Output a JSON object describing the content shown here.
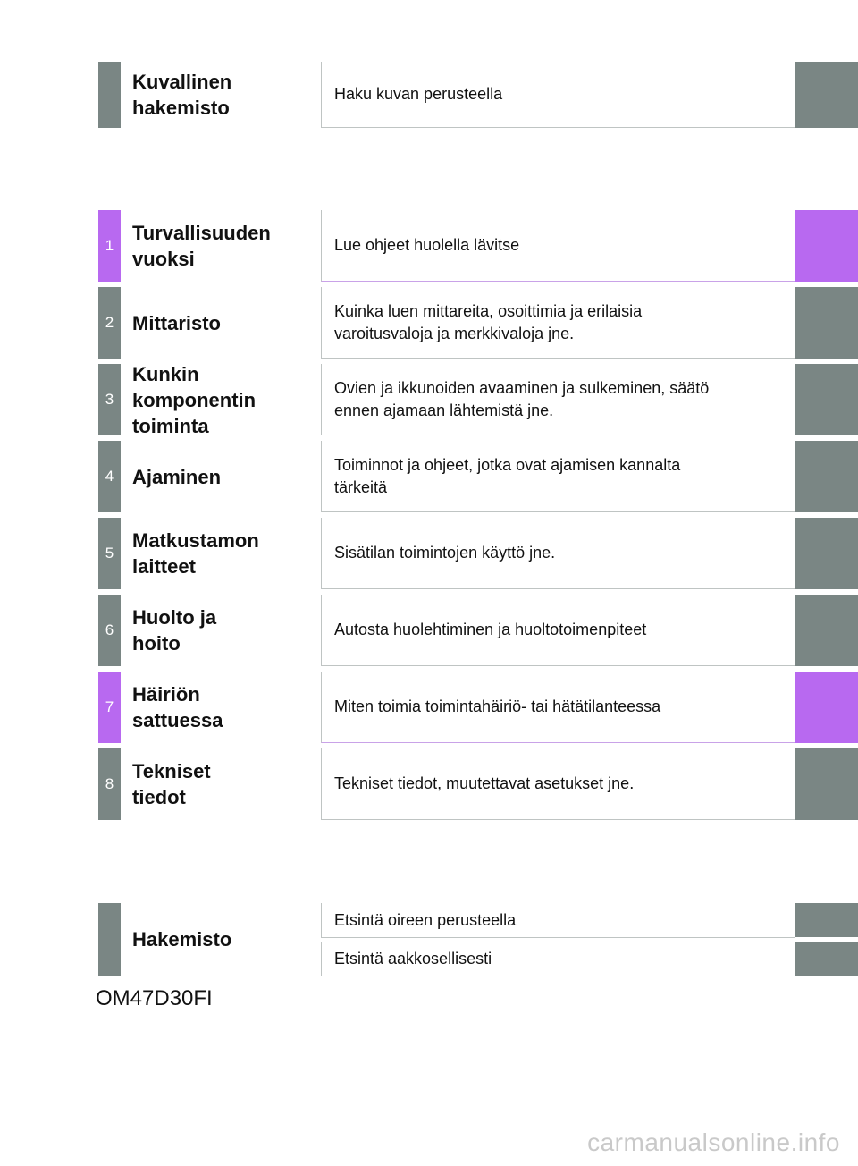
{
  "pictorial": {
    "title": "Kuvallinen\nhakemisto",
    "description": "Haku kuvan perusteella"
  },
  "chapters": [
    {
      "number": "1",
      "title": "Turvallisuuden\nvuoksi",
      "description": "Lue ohjeet huolella lävitse"
    },
    {
      "number": "2",
      "title": "Mittaristo",
      "description": "Kuinka luen mittareita, osoittimia ja erilaisia\nvaroitusvaloja ja merkkivaloja jne."
    },
    {
      "number": "3",
      "title": "Kunkin\nkomponentin\ntoiminta",
      "description": "Ovien ja ikkunoiden avaaminen ja sulkeminen, säätö\nennen ajamaan lähtemistä jne."
    },
    {
      "number": "4",
      "title": "Ajaminen",
      "description": "Toiminnot ja ohjeet, jotka ovat ajamisen kannalta\ntärkeitä"
    },
    {
      "number": "5",
      "title": "Matkustamon\nlaitteet",
      "description": "Sisätilan toimintojen käyttö jne."
    },
    {
      "number": "6",
      "title": "Huolto ja\nhoito",
      "description": "Autosta huolehtiminen ja huoltotoimenpiteet"
    },
    {
      "number": "7",
      "title": "Häiriön\nsattuessa",
      "description": "Miten toimia toimintahäiriö- tai hätätilanteessa"
    },
    {
      "number": "8",
      "title": "Tekniset\ntiedot",
      "description": "Tekniset tiedot, muutettavat asetukset jne."
    }
  ],
  "index": {
    "title": "Hakemisto",
    "items": [
      "Etsintä oireen perusteella",
      "Etsintä aakkosellisesti"
    ]
  },
  "document_code": "OM47D30FI",
  "watermark": "carmanualsonline.info",
  "colors": {
    "gray_tab": "#7a8684",
    "accent_tab": "#b869f0"
  }
}
